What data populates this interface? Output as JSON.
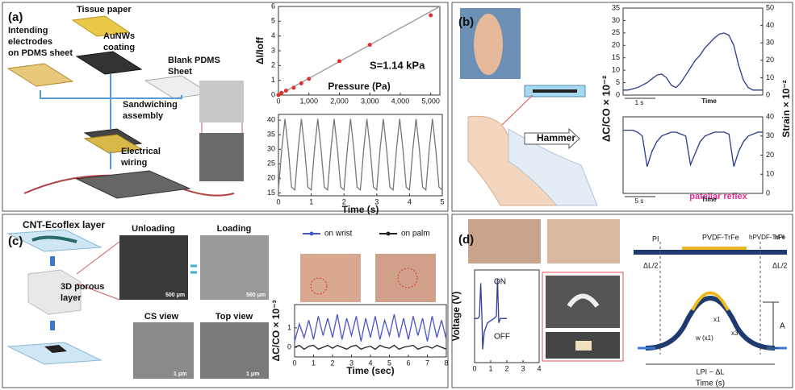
{
  "panels": [
    {
      "label": "(a)",
      "texts": [
        "Tissue paper",
        "Intending",
        "electrodes",
        "on PDMS sheet",
        "AuNWs",
        "coating",
        "Blank PDMS",
        "Sheet",
        "Sandwiching",
        "assembly",
        "Electrical",
        "wiring",
        "S=1.14 kPa"
      ],
      "plots": [
        {
          "xlim": [
            0,
            5300
          ],
          "ylim": [
            0,
            6
          ],
          "xticks": [
            0,
            {
              "value": 1000,
              "label": "1,000"
            },
            {
              "value": 2000,
              "label": "2,000"
            },
            {
              "value": 3000,
              "label": "3,000"
            },
            {
              "value": 4000,
              "label": "4,000"
            },
            {
              "value": 5000,
              "label": "5,000"
            }
          ],
          "yticks": [
            0,
            1,
            2,
            3,
            4,
            5,
            6
          ],
          "xlabel": "Pressure (Pa)",
          "ylabel": "ΔI/Ioff",
          "series": [
            {
              "color": "#999999",
              "x": [
                0,
                5300
              ],
              "values": [
                0,
                6
              ]
            },
            {
              "color": "#e03030",
              "mode": "markers",
              "x": [
                0,
                100,
                250,
                500,
                750,
                1000,
                2000,
                3000,
                5000
              ],
              "values": [
                0,
                0.15,
                0.3,
                0.5,
                0.8,
                1.1,
                2.3,
                3.4,
                5.4
              ]
            }
          ]
        },
        {
          "xlim": [
            0,
            5
          ],
          "ylim": [
            14,
            42
          ],
          "xticks": [
            0,
            1,
            2,
            3,
            4,
            5
          ],
          "yticks": [
            15,
            20,
            25,
            30,
            35,
            40
          ],
          "xlabel": "Time (s)",
          "series": [
            {
              "color": "#777777",
              "x": [
                0,
                0.1,
                0.2,
                0.3,
                0.4,
                0.5,
                0.6,
                0.7,
                0.8,
                0.9,
                1,
                1.1,
                1.2,
                1.3,
                1.4,
                1.5,
                1.6,
                1.7,
                1.8,
                1.9,
                2,
                2.1,
                2.2,
                2.3,
                2.4,
                2.5,
                2.6,
                2.7,
                2.8,
                2.9,
                3,
                3.1,
                3.2,
                3.3,
                3.4,
                3.5,
                3.6,
                3.7,
                3.8,
                3.9,
                4,
                4.1,
                4.2,
                4.3,
                4.4,
                4.5,
                4.6,
                4.7,
                4.8,
                4.9,
                5
              ],
              "values": [
                16,
                30,
                40.5,
                30,
                17,
                16,
                30,
                40.5,
                30,
                17,
                16,
                30,
                40.5,
                30,
                17,
                16,
                30,
                40.5,
                30,
                17,
                16,
                30,
                40.5,
                30,
                17,
                16,
                30,
                40.5,
                30,
                17,
                16,
                30,
                40.5,
                30,
                17,
                16,
                30,
                40.5,
                30,
                17,
                16,
                30,
                40.5,
                30,
                17,
                16,
                30,
                40.5,
                30,
                17,
                16
              ]
            }
          ]
        }
      ]
    },
    {
      "label": "(b)",
      "texts": [
        "Hammer",
        "patellar reflex",
        "ΔC/CO × 10⁻²",
        "Strain × 10⁻²"
      ],
      "plots": [
        {
          "xlim": [
            0,
            29
          ],
          "ylim": [
            0,
            35
          ],
          "yticks": [
            0,
            5,
            10,
            15,
            20,
            25,
            30,
            35
          ],
          "y2lim": [
            0,
            50
          ],
          "y2ticks": [
            0,
            10,
            20,
            30,
            40,
            50
          ],
          "xnote": "1 s",
          "xlabel": "Time",
          "series": [
            {
              "color": "#2a3a8c",
              "x": [
                0,
                1,
                2,
                3,
                4,
                5,
                6,
                7,
                8,
                9,
                10,
                11,
                12,
                13,
                14,
                15,
                16,
                17,
                18,
                19,
                20,
                21,
                22,
                23,
                24,
                25,
                26,
                27,
                28,
                29
              ],
              "values": [
                2,
                2,
                2.5,
                3,
                4,
                5,
                6.5,
                8,
                8.5,
                7,
                4,
                3,
                5,
                8,
                11,
                14,
                16,
                19,
                21,
                23,
                24.5,
                25,
                24,
                20,
                12,
                6,
                3,
                2,
                2,
                2
              ]
            }
          ]
        },
        {
          "xlim": [
            0,
            29
          ],
          "y2lim": [
            0,
            40
          ],
          "y2ticks": [
            0,
            10,
            20,
            30,
            40
          ],
          "xnote": "5 s",
          "xlabel": "Time",
          "series": [
            {
              "color": "#2a3a8c",
              "axis": "y2",
              "x": [
                0,
                1,
                2,
                3,
                4,
                5,
                6,
                7,
                8,
                9,
                10,
                11,
                12,
                13,
                14,
                15,
                16,
                17,
                18,
                19,
                20,
                21,
                22,
                23,
                24,
                25,
                26,
                27,
                28,
                29
              ],
              "values": [
                33,
                33,
                33,
                32,
                30,
                14,
                22,
                27,
                30,
                31,
                32,
                32,
                31,
                30,
                15,
                21,
                27,
                30,
                31,
                32,
                32,
                32,
                31,
                14,
                22,
                27,
                30,
                31,
                32,
                32
              ]
            }
          ]
        }
      ]
    },
    {
      "label": "(c)",
      "texts": [
        "CNT-Ecoflex layer",
        "Unloading",
        "Loading",
        "3D porous",
        "layer",
        "CS view",
        "Top view",
        "500 μm",
        "500 μm",
        "1 μm",
        "1 μm"
      ],
      "plots": [
        {
          "xlim": [
            0,
            8
          ],
          "ylim": [
            -0.5,
            2.2
          ],
          "xticks": [
            0,
            1,
            2,
            3,
            4,
            5,
            6,
            7,
            8
          ],
          "yticks": [
            0,
            1
          ],
          "xlabel": "Time (sec)",
          "ylabel": "ΔC/CO × 10⁻³",
          "series": [
            {
              "name": "on wrist",
              "color": "#4a55c8",
              "x": [
                0,
                0.25,
                0.5,
                0.75,
                1,
                1.25,
                1.5,
                1.75,
                2,
                2.25,
                2.5,
                2.75,
                3,
                3.25,
                3.5,
                3.75,
                4,
                4.25,
                4.5,
                4.75,
                5,
                5.25,
                5.5,
                5.75,
                6,
                6.25,
                6.5,
                6.75,
                7,
                7.25,
                7.5,
                7.75,
                8
              ],
              "values": [
                0.3,
                1.2,
                0.5,
                1.4,
                0.4,
                1.6,
                0.6,
                1.5,
                0.5,
                1.7,
                0.4,
                1.5,
                0.6,
                1.6,
                0.3,
                1.5,
                0.5,
                1.6,
                0.4,
                1.4,
                0.6,
                1.7,
                0.5,
                1.5,
                0.4,
                1.6,
                0.6,
                1.5,
                0.3,
                1.6,
                0.5,
                1.4,
                0.4
              ]
            },
            {
              "name": "on palm",
              "color": "#222222",
              "x": [
                0,
                0.25,
                0.5,
                0.75,
                1,
                1.25,
                1.5,
                1.75,
                2,
                2.25,
                2.5,
                2.75,
                3,
                3.25,
                3.5,
                3.75,
                4,
                4.25,
                4.5,
                4.75,
                5,
                5.25,
                5.5,
                5.75,
                6,
                6.25,
                6.5,
                6.75,
                7,
                7.25,
                7.5,
                7.75,
                8
              ],
              "values": [
                0,
                0.1,
                -0.1,
                0.05,
                0.1,
                -0.1,
                0,
                0.1,
                -0.05,
                0.1,
                0,
                -0.1,
                0.05,
                0.1,
                -0.1,
                0,
                0.05,
                -0.1,
                0.1,
                0,
                -0.05,
                0.1,
                -0.1,
                0,
                0.05,
                0.1,
                -0.1,
                0,
                0.05,
                -0.05,
                0.1,
                0,
                -0.1
              ]
            }
          ]
        }
      ]
    },
    {
      "label": "(d)",
      "texts": [
        "ON",
        "OFF",
        "PI",
        "PVDF-TrFe",
        "hPVDF-TrFe",
        "hPI",
        "ΔL/2",
        "ΔL/2",
        "A",
        "w (x1)",
        "x1",
        "x3",
        "LPI − ΔL",
        "Time (s)"
      ],
      "plots": [
        {
          "xlim": [
            0,
            4
          ],
          "ylim": [
            -1,
            1.1
          ],
          "xticks": [
            0,
            1,
            2,
            3,
            4
          ],
          "ylabel": "Voltage (V)",
          "series": [
            {
              "color": "#2b3f9a",
              "x": [
                0,
                0.2,
                0.3,
                0.38,
                0.45,
                0.5,
                0.6,
                0.8,
                1,
                1.2,
                1.35,
                1.42,
                1.5,
                1.6,
                1.8,
                2
              ],
              "values": [
                0,
                0,
                0.05,
                0.8,
                0.1,
                -0.7,
                -0.3,
                -0.1,
                -0.05,
                0,
                0.05,
                0.9,
                -0.1,
                0,
                0,
                0
              ]
            }
          ]
        }
      ]
    }
  ]
}
